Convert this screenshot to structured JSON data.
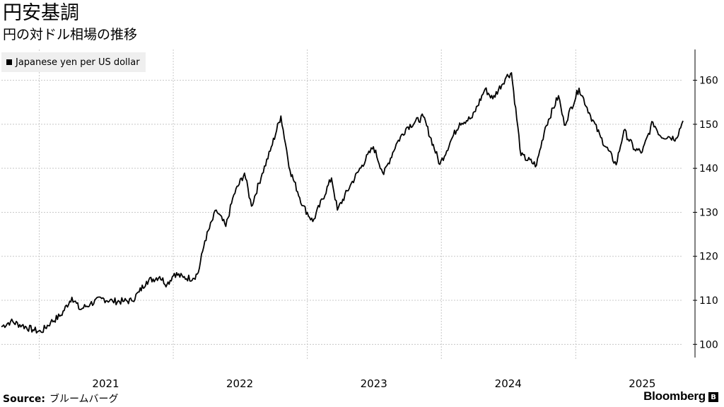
{
  "header": {
    "title": "円安基調",
    "subtitle": "円の対ドル相場の推移"
  },
  "footer": {
    "source_label": "Source:",
    "source_value": "ブルームバーグ",
    "brand": "Bloomberg"
  },
  "colors": {
    "line": "#000000",
    "grid": "#c8c8c8",
    "legend_bg": "#efefef"
  },
  "chart_data": {
    "type": "line",
    "title": "円安基調",
    "subtitle": "円の対ドル相場の推移",
    "xlabel": "",
    "ylabel": "",
    "legend": {
      "position": "top-left",
      "entries": [
        "Japanese yen per US dollar"
      ]
    },
    "grid": true,
    "y_axis": {
      "side": "right",
      "range": [
        97,
        167
      ],
      "ticks": [
        100,
        110,
        120,
        130,
        140,
        150,
        160
      ]
    },
    "x_axis": {
      "range": [
        "2020-09-20",
        "2025-10-20"
      ],
      "tick_labels": [
        "2021",
        "2022",
        "2023",
        "2024",
        "2025"
      ],
      "tick_positions": [
        "2021-07-01",
        "2022-07-01",
        "2023-07-01",
        "2024-07-01",
        "2025-07-01"
      ]
    },
    "series": [
      {
        "name": "Japanese yen per US dollar",
        "points": [
          [
            "2020-09-20",
            104.0
          ],
          [
            "2020-10-15",
            105.2
          ],
          [
            "2020-11-15",
            104.3
          ],
          [
            "2020-12-15",
            103.3
          ],
          [
            "2021-01-06",
            102.8
          ],
          [
            "2021-02-01",
            105.0
          ],
          [
            "2021-03-01",
            106.6
          ],
          [
            "2021-03-31",
            110.7
          ],
          [
            "2021-04-22",
            107.9
          ],
          [
            "2021-05-20",
            109.2
          ],
          [
            "2021-06-20",
            110.4
          ],
          [
            "2021-07-20",
            109.8
          ],
          [
            "2021-08-20",
            109.8
          ],
          [
            "2021-09-10",
            109.9
          ],
          [
            "2021-09-30",
            111.9
          ],
          [
            "2021-10-20",
            114.3
          ],
          [
            "2021-11-25",
            115.4
          ],
          [
            "2021-12-15",
            113.6
          ],
          [
            "2022-01-04",
            116.1
          ],
          [
            "2022-01-28",
            115.2
          ],
          [
            "2022-02-24",
            115.0
          ],
          [
            "2022-03-10",
            116.3
          ],
          [
            "2022-03-28",
            123.5
          ],
          [
            "2022-04-28",
            130.5
          ],
          [
            "2022-05-24",
            126.8
          ],
          [
            "2022-06-15",
            134.0
          ],
          [
            "2022-07-14",
            138.9
          ],
          [
            "2022-08-02",
            131.4
          ],
          [
            "2022-08-31",
            138.8
          ],
          [
            "2022-09-22",
            143.9
          ],
          [
            "2022-10-21",
            151.9
          ],
          [
            "2022-11-15",
            139.5
          ],
          [
            "2022-12-20",
            131.5
          ],
          [
            "2023-01-16",
            127.9
          ],
          [
            "2023-03-08",
            137.8
          ],
          [
            "2023-03-24",
            130.5
          ],
          [
            "2023-04-28",
            136.1
          ],
          [
            "2023-05-30",
            140.7
          ],
          [
            "2023-06-30",
            144.9
          ],
          [
            "2023-07-28",
            138.6
          ],
          [
            "2023-08-31",
            145.5
          ],
          [
            "2023-09-29",
            149.3
          ],
          [
            "2023-11-13",
            151.7
          ],
          [
            "2023-12-28",
            140.9
          ],
          [
            "2024-01-31",
            147.0
          ],
          [
            "2024-02-20",
            150.3
          ],
          [
            "2024-03-25",
            151.5
          ],
          [
            "2024-04-29",
            158.0
          ],
          [
            "2024-05-20",
            155.8
          ],
          [
            "2024-06-26",
            160.8
          ],
          [
            "2024-07-10",
            161.7
          ],
          [
            "2024-08-05",
            142.9
          ],
          [
            "2024-09-16",
            140.7
          ],
          [
            "2024-10-10",
            149.3
          ],
          [
            "2024-11-15",
            156.5
          ],
          [
            "2024-12-01",
            149.8
          ],
          [
            "2025-01-10",
            158.2
          ],
          [
            "2025-02-10",
            152.0
          ],
          [
            "2025-03-10",
            147.0
          ],
          [
            "2025-04-21",
            140.8
          ],
          [
            "2025-05-12",
            148.6
          ],
          [
            "2025-06-10",
            144.3
          ],
          [
            "2025-07-01",
            143.7
          ],
          [
            "2025-07-30",
            150.5
          ],
          [
            "2025-08-20",
            147.3
          ],
          [
            "2025-09-10",
            147.2
          ],
          [
            "2025-10-01",
            146.8
          ],
          [
            "2025-10-20",
            150.8
          ]
        ]
      }
    ]
  }
}
